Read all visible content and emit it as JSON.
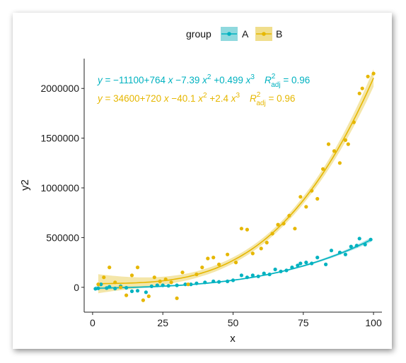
{
  "chart_data": {
    "type": "scatter",
    "title": "",
    "xlabel": "x",
    "ylabel": "y2",
    "xlim": [
      -3,
      103
    ],
    "ylim": [
      -250000,
      2300000
    ],
    "x_ticks": [
      0,
      25,
      50,
      75,
      100
    ],
    "x_tick_labels": [
      "0",
      "25",
      "50",
      "75",
      "100"
    ],
    "y_ticks": [
      0,
      500000,
      1000000,
      1500000,
      2000000
    ],
    "y_tick_labels": [
      "0",
      "500000",
      "1000000",
      "1500000",
      "2000000"
    ],
    "grid": false,
    "legend": {
      "title": "group",
      "placement": "top",
      "entries": [
        "A",
        "B"
      ]
    },
    "series": [
      {
        "name": "A",
        "color": "#00b2c0",
        "fill": "#8fd9de",
        "fit": {
          "type": "polynomial-3",
          "coefficients": [
            -11100,
            764,
            -7.39,
            0.499
          ]
        },
        "equation": {
          "lhs": "y",
          "eq": " = −11100+764 ",
          "x1": "x",
          "m2": " −7.39 ",
          "x2": "x",
          "sup2": "2",
          "p3": " +0.499 ",
          "x3": "x",
          "sup3": "3",
          "r": "R",
          "rsup": "2",
          "rsub": "adj",
          "rval": " = 0.96"
        },
        "points": [
          [
            1,
            -15000
          ],
          [
            2,
            -10000
          ],
          [
            3,
            30000
          ],
          [
            5,
            -8000
          ],
          [
            6,
            5000
          ],
          [
            8,
            -12000
          ],
          [
            10,
            10000
          ],
          [
            12,
            -5000
          ],
          [
            14,
            -40000
          ],
          [
            16,
            -35000
          ],
          [
            19,
            -50000
          ],
          [
            21,
            10000
          ],
          [
            23,
            20000
          ],
          [
            25,
            20000
          ],
          [
            27,
            15000
          ],
          [
            30,
            20000
          ],
          [
            33,
            30000
          ],
          [
            35,
            30000
          ],
          [
            37,
            40000
          ],
          [
            40,
            50000
          ],
          [
            43,
            60000
          ],
          [
            45,
            55000
          ],
          [
            48,
            60000
          ],
          [
            50,
            70000
          ],
          [
            53,
            120000
          ],
          [
            55,
            100000
          ],
          [
            57,
            120000
          ],
          [
            59,
            110000
          ],
          [
            61,
            140000
          ],
          [
            63,
            130000
          ],
          [
            65,
            180000
          ],
          [
            67,
            160000
          ],
          [
            69,
            170000
          ],
          [
            71,
            200000
          ],
          [
            73,
            220000
          ],
          [
            74,
            240000
          ],
          [
            76,
            250000
          ],
          [
            78,
            240000
          ],
          [
            80,
            300000
          ],
          [
            83,
            230000
          ],
          [
            85,
            370000
          ],
          [
            88,
            350000
          ],
          [
            90,
            330000
          ],
          [
            92,
            410000
          ],
          [
            94,
            420000
          ],
          [
            95,
            490000
          ],
          [
            97,
            430000
          ],
          [
            99,
            480000
          ]
        ]
      },
      {
        "name": "B",
        "color": "#e6b700",
        "fill": "#f0de8c",
        "fit": {
          "type": "polynomial-3",
          "coefficients": [
            34600,
            720,
            -40.1,
            2.4
          ]
        },
        "equation": {
          "lhs": "y",
          "eq": " = 34600+720 ",
          "x1": "x",
          "m2": " −40.1 ",
          "x2": "x",
          "sup2": "2",
          "p3": " +2.4 ",
          "x3": "x",
          "sup3": "3",
          "r": "R",
          "rsup": "2",
          "rsub": "adj",
          "rval": " = 0.96"
        },
        "points": [
          [
            2,
            30000
          ],
          [
            4,
            100000
          ],
          [
            6,
            200000
          ],
          [
            8,
            50000
          ],
          [
            10,
            0
          ],
          [
            12,
            -80000
          ],
          [
            14,
            120000
          ],
          [
            16,
            200000
          ],
          [
            18,
            -130000
          ],
          [
            20,
            -90000
          ],
          [
            22,
            100000
          ],
          [
            24,
            60000
          ],
          [
            26,
            80000
          ],
          [
            28,
            50000
          ],
          [
            30,
            -110000
          ],
          [
            32,
            150000
          ],
          [
            34,
            30000
          ],
          [
            37,
            130000
          ],
          [
            39,
            200000
          ],
          [
            41,
            290000
          ],
          [
            43,
            300000
          ],
          [
            45,
            230000
          ],
          [
            48,
            330000
          ],
          [
            51,
            250000
          ],
          [
            53,
            590000
          ],
          [
            55,
            580000
          ],
          [
            57,
            340000
          ],
          [
            60,
            390000
          ],
          [
            62,
            450000
          ],
          [
            64,
            540000
          ],
          [
            66,
            630000
          ],
          [
            68,
            640000
          ],
          [
            70,
            720000
          ],
          [
            72,
            590000
          ],
          [
            74,
            910000
          ],
          [
            76,
            810000
          ],
          [
            78,
            970000
          ],
          [
            80,
            890000
          ],
          [
            82,
            1190000
          ],
          [
            84,
            1440000
          ],
          [
            86,
            1370000
          ],
          [
            88,
            1250000
          ],
          [
            90,
            1480000
          ],
          [
            91,
            1440000
          ],
          [
            93,
            1660000
          ],
          [
            95,
            1950000
          ],
          [
            96,
            2000000
          ],
          [
            98,
            2120000
          ],
          [
            100,
            2150000
          ]
        ]
      }
    ]
  }
}
